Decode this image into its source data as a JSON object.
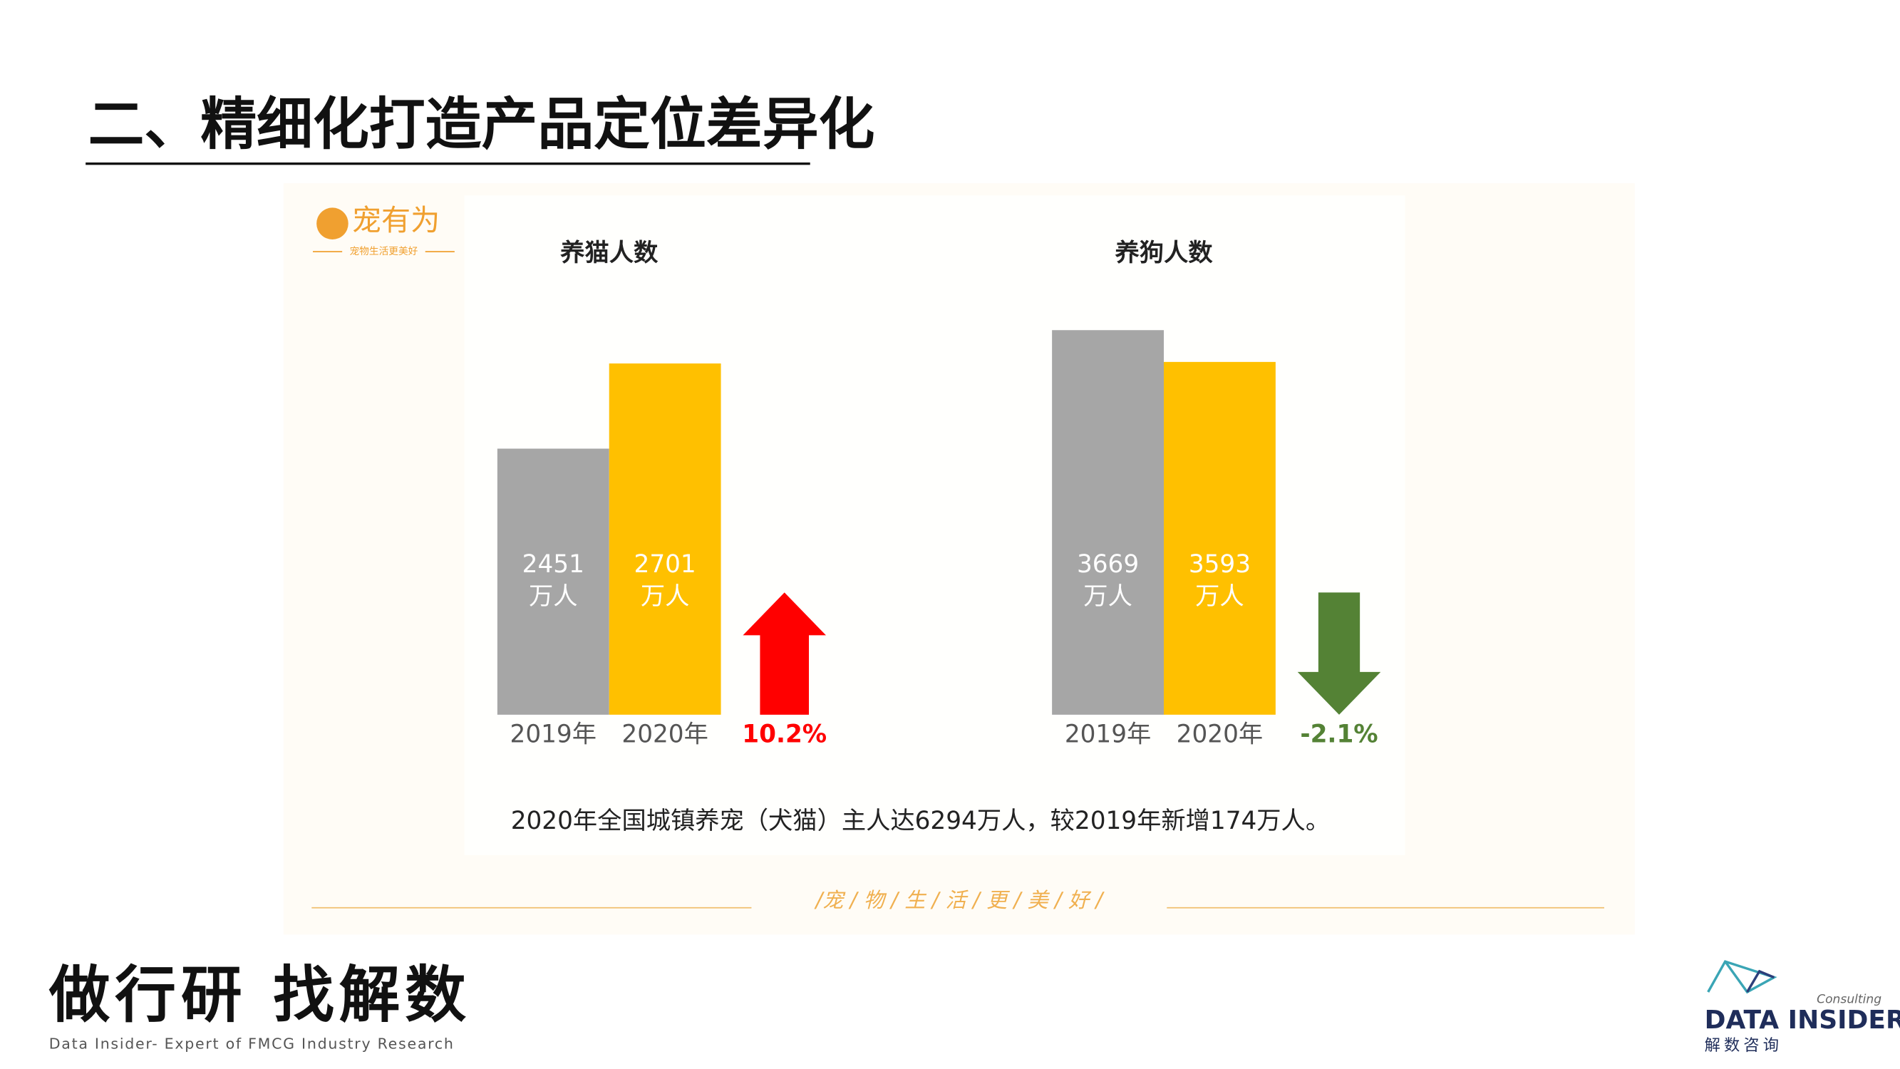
{
  "slide": {
    "title": "二、精细化打造产品定位差异化",
    "brand": "宠有为",
    "brand_tagline": "宠物生活更美好",
    "note": "2020年全国城镇养宠（犬猫）主人达6294万人，较2019年新增174万人。",
    "slogan": "/宠 / 物 / 生 / 活 / 更 / 美 / 好 /",
    "footer_slogan": "做行研 找解数",
    "footer_sub": "Data Insider- Expert of FMCG Industry Research",
    "logo_name": "DATA INSIDER",
    "logo_tag": "Consulting",
    "logo_cn": "解数咨询"
  },
  "chart_data": [
    {
      "type": "bar",
      "title": "养猫人数",
      "categories": [
        "2019年",
        "2020年"
      ],
      "values": [
        2451,
        2701
      ],
      "unit": "万人",
      "colors": [
        "#a6a6a6",
        "#ffc000"
      ],
      "ylim": [
        1670,
        3230
      ],
      "change": {
        "value": 10.2,
        "label": "10.2%",
        "color": "#ff0000"
      }
    },
    {
      "type": "bar",
      "title": "养狗人数",
      "categories": [
        "2019年",
        "2020年"
      ],
      "values": [
        3669,
        3593
      ],
      "unit": "万人",
      "colors": [
        "#a6a6a6",
        "#ffc000"
      ],
      "ylim": [
        2750,
        4020
      ],
      "change": {
        "value": -2.1,
        "label": "-2.1%",
        "color": "#548235"
      }
    }
  ]
}
